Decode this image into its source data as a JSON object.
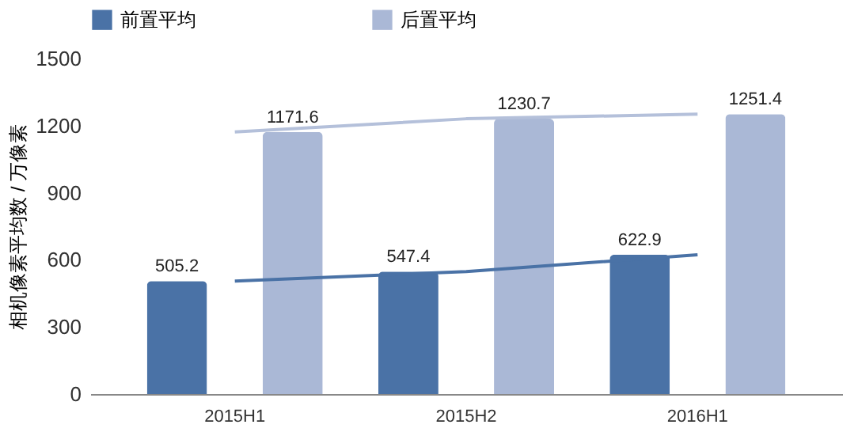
{
  "chart_data": {
    "type": "bar",
    "ylabel": "相机像素平均数 / 万像素",
    "categories": [
      "2015H1",
      "2015H2",
      "2016H1"
    ],
    "series": [
      {
        "name": "前置平均",
        "color": "#4a72a6",
        "values": [
          505.2,
          547.4,
          622.9
        ],
        "value_labels": [
          "505.2",
          "547.4",
          "622.9"
        ]
      },
      {
        "name": "后置平均",
        "color": "#aab8d6",
        "values": [
          1171.6,
          1230.7,
          1251.4
        ],
        "value_labels": [
          "1171.6",
          "1230.7",
          "1251.4"
        ]
      },
      {
        "type": "line",
        "color": "#4a72a6",
        "values": [
          505.2,
          547.4,
          622.9
        ]
      },
      {
        "type": "line",
        "color": "#b4c0da",
        "values": [
          1171.6,
          1230.7,
          1251.4
        ]
      }
    ],
    "ylim": [
      0,
      1500
    ],
    "yticks": [
      0,
      300,
      600,
      900,
      1200,
      1500
    ],
    "legend": "top",
    "grid": false
  }
}
